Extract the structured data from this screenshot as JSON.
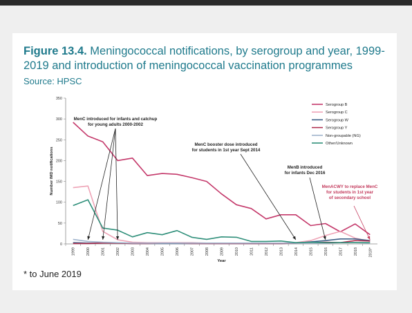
{
  "figure": {
    "label": "Figure 13.4.",
    "title": "Meningococcal notifications, by serogroup and year, 1999-2019 and introduction of meningococcal vaccination programmes",
    "source": "Source: HPSC",
    "footnote": "* to June 2019"
  },
  "chart_data": {
    "type": "line",
    "xlabel": "Year",
    "ylabel": "Number IMD notifications",
    "ylim": [
      0,
      350
    ],
    "yticks": [
      0,
      50,
      100,
      150,
      200,
      250,
      300,
      350
    ],
    "grid": false,
    "legend_position": "top-right",
    "categories": [
      "1999",
      "2000",
      "2001",
      "2002",
      "2003",
      "2004",
      "2005",
      "2006",
      "2007",
      "2008",
      "2009",
      "2010",
      "2011",
      "2012",
      "2013",
      "2014",
      "2015",
      "2016",
      "2017",
      "2018",
      "2019*"
    ],
    "series": [
      {
        "name": "Serogroup B",
        "color": "#c4386a",
        "values": [
          292,
          259,
          245,
          200,
          206,
          164,
          169,
          167,
          159,
          150,
          120,
          94,
          85,
          60,
          70,
          70,
          44,
          49,
          29,
          48,
          22
        ]
      },
      {
        "name": "Serogroup C",
        "color": "#eea3b6",
        "values": [
          135,
          139,
          30,
          10,
          4,
          3,
          3,
          3,
          3,
          2,
          2,
          2,
          2,
          2,
          2,
          3,
          8,
          20,
          30,
          14,
          6
        ]
      },
      {
        "name": "Serogroup W",
        "color": "#3d5f87",
        "values": [
          3,
          2,
          2,
          2,
          1,
          1,
          1,
          1,
          1,
          1,
          1,
          1,
          1,
          1,
          1,
          2,
          5,
          8,
          12,
          12,
          8
        ]
      },
      {
        "name": "Serogroup Y",
        "color": "#b03050",
        "values": [
          1,
          1,
          2,
          2,
          1,
          1,
          2,
          2,
          1,
          1,
          1,
          1,
          1,
          1,
          1,
          2,
          3,
          4,
          3,
          8,
          7
        ]
      },
      {
        "name": "Non-groupable (NG)",
        "color": "#9fb3cc",
        "values": [
          11,
          6,
          4,
          3,
          2,
          2,
          2,
          2,
          2,
          2,
          2,
          2,
          2,
          2,
          2,
          2,
          2,
          2,
          3,
          3,
          2
        ]
      },
      {
        "name": "Other/Unknown",
        "color": "#2f8f7a",
        "values": [
          92,
          106,
          38,
          33,
          17,
          27,
          22,
          32,
          16,
          11,
          17,
          16,
          6,
          6,
          7,
          3,
          4,
          3,
          3,
          3,
          3
        ]
      }
    ],
    "annotations": [
      {
        "text": [
          "MenC introduced for infants and catchup",
          "for young adults 2000-2002"
        ],
        "targets": [
          "2000",
          "2001",
          "2002"
        ],
        "color": "#222222"
      },
      {
        "text": [
          "MenC booster dose introduced",
          "for students in 1st year Sept 2014"
        ],
        "targets": [
          "2014"
        ],
        "color": "#222222"
      },
      {
        "text": [
          "MenB introduced",
          "for infants Dec 2016"
        ],
        "targets": [
          "2016"
        ],
        "color": "#222222"
      },
      {
        "text": [
          "MenACWY to replace MenC",
          "for students in 1st year",
          "of secondary school"
        ],
        "targets": [
          "2019*"
        ],
        "color": "#c33a5c"
      }
    ]
  }
}
